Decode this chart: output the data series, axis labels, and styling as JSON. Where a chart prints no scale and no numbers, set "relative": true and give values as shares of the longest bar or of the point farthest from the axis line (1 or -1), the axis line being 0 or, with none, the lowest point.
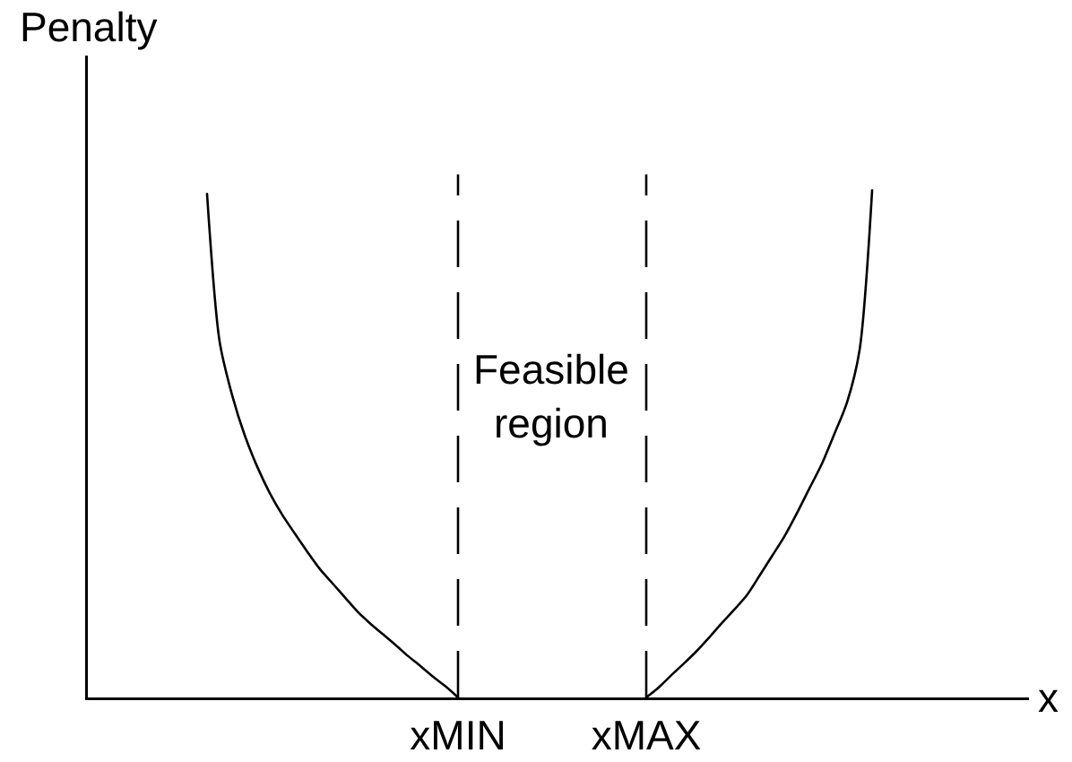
{
  "chart_data": {
    "type": "line",
    "xlabel": "x",
    "ylabel": "Penalty",
    "relative": true,
    "tick_labels": "x",
    "categories": [
      null,
      null,
      null,
      null,
      null,
      null,
      null,
      null,
      null,
      null,
      null,
      null,
      null,
      null,
      null,
      null,
      null,
      null,
      null,
      null,
      null,
      null,
      null,
      null,
      null,
      null,
      null,
      null,
      null,
      "xMIN",
      null,
      null,
      null,
      null,
      null,
      null,
      null,
      null,
      null,
      null,
      null,
      null,
      null,
      null,
      "xMAX",
      null,
      null,
      null,
      null,
      null,
      null,
      null,
      null,
      null,
      null,
      null,
      null,
      null,
      null,
      null,
      null,
      null,
      null,
      null,
      null,
      null,
      null,
      null,
      null,
      null,
      null,
      null,
      null,
      null,
      null
    ],
    "series": [
      {
        "color": "#000000",
        "values": [
          null,
          null,
          null,
          null,
          null,
          null,
          null,
          null,
          null,
          0.993,
          0.702,
          0.596,
          0.517,
          0.455,
          0.403,
          0.36,
          0.323,
          0.287,
          0.253,
          0.225,
          0.197,
          0.169,
          0.146,
          0.125,
          0.104,
          0.082,
          0.062,
          0.041,
          0.022,
          0,
          null,
          null,
          null,
          null,
          null,
          null,
          null,
          null,
          null,
          null,
          null,
          null,
          null,
          null,
          null,
          null,
          null,
          null,
          null,
          null,
          null,
          null,
          null,
          null,
          null,
          null,
          null,
          null,
          null,
          null,
          null,
          null,
          null,
          null,
          null,
          null,
          null,
          null,
          null,
          null,
          null,
          null,
          null,
          null,
          null
        ]
      },
      {
        "color": "#000000",
        "values": [
          null,
          null,
          null,
          null,
          null,
          null,
          null,
          null,
          null,
          null,
          null,
          null,
          null,
          null,
          null,
          null,
          null,
          null,
          null,
          null,
          null,
          null,
          null,
          null,
          null,
          null,
          null,
          null,
          null,
          null,
          null,
          null,
          null,
          null,
          null,
          null,
          null,
          null,
          null,
          null,
          null,
          null,
          null,
          null,
          0,
          0.02,
          0.044,
          0.067,
          0.091,
          0.118,
          0.146,
          0.173,
          0.201,
          0.239,
          0.278,
          0.317,
          0.363,
          0.412,
          0.461,
          0.52,
          0.582,
          0.685,
          1,
          null,
          null,
          null,
          null,
          null,
          null,
          null,
          null,
          null,
          null,
          null,
          null
        ]
      }
    ],
    "ref_lines": [
      {
        "axis": "x",
        "value": "xMIN",
        "line_style": "dashed",
        "color": "#000000"
      },
      {
        "axis": "x",
        "value": "xMAX",
        "line_style": "dashed",
        "color": "#000000"
      }
    ],
    "annotations": [
      "Feasible\nregion"
    ]
  }
}
